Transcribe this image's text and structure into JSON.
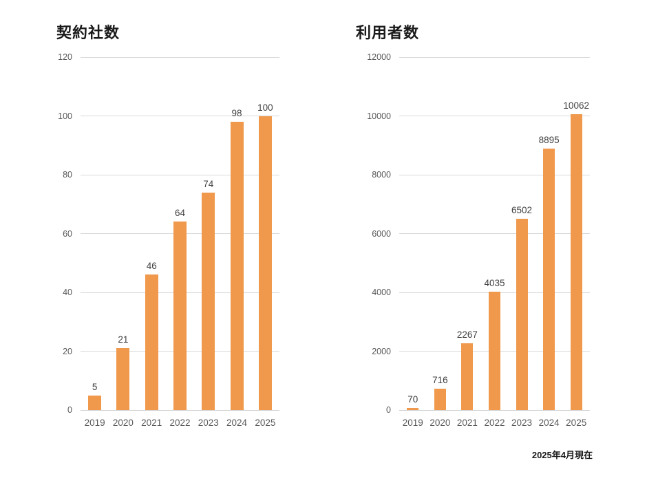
{
  "footer": {
    "note": "2025年4月現在"
  },
  "colors": {
    "bar": "#F0994C",
    "gridline": "#D9D9D9",
    "axis_label": "#595959",
    "data_label": "#404040",
    "title": "#1A1A1A"
  },
  "chart_data": [
    {
      "type": "bar",
      "title": "契約社数",
      "categories": [
        "2019",
        "2020",
        "2021",
        "2022",
        "2023",
        "2024",
        "2025"
      ],
      "values": [
        5,
        21,
        46,
        64,
        74,
        98,
        100
      ],
      "data_labels": [
        "5",
        "21",
        "46",
        "64",
        "74",
        "98",
        "100"
      ],
      "ylim": [
        0,
        120
      ],
      "yticks": [
        0,
        20,
        40,
        60,
        80,
        100,
        120
      ],
      "grid": true,
      "legend": "none",
      "bar_color": "#F0994C"
    },
    {
      "type": "bar",
      "title": "利用者数",
      "categories": [
        "2019",
        "2020",
        "2021",
        "2022",
        "2023",
        "2024",
        "2025"
      ],
      "values": [
        70,
        716,
        2267,
        4035,
        6502,
        8895,
        10062
      ],
      "data_labels": [
        "70",
        "716",
        "2267",
        "4035",
        "6502",
        "8895",
        "10062"
      ],
      "ylim": [
        0,
        12000
      ],
      "yticks": [
        0,
        2000,
        4000,
        6000,
        8000,
        10000,
        12000
      ],
      "grid": true,
      "legend": "none",
      "bar_color": "#F0994C"
    }
  ]
}
